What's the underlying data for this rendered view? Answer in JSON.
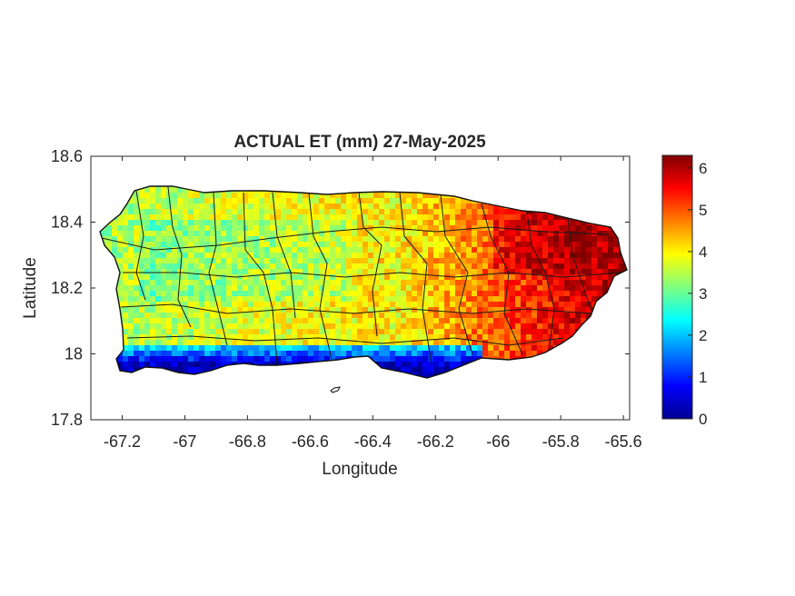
{
  "figure": {
    "title": "ACTUAL ET (mm) 27-May-2025",
    "xlabel": "Longitude",
    "ylabel": "Latitude"
  },
  "chart_data": {
    "type": "heatmap",
    "title": "ACTUAL ET (mm) 27-May-2025",
    "xlabel": "Longitude",
    "ylabel": "Latitude",
    "xlim": [
      -67.3,
      -65.58
    ],
    "ylim": [
      17.8,
      18.6
    ],
    "x_ticks": [
      -67.2,
      -67,
      -66.8,
      -66.6,
      -66.4,
      -66.2,
      -66,
      -65.8,
      -65.6
    ],
    "x_tick_labels": [
      "-67.2",
      "-67",
      "-66.8",
      "-66.6",
      "-66.4",
      "-66.2",
      "-66",
      "-65.8",
      "-65.6"
    ],
    "y_ticks": [
      17.8,
      18,
      18.2,
      18.4,
      18.6
    ],
    "y_tick_labels": [
      "17.8",
      "18",
      "18.2",
      "18.4",
      "18.6"
    ],
    "colorbar": {
      "colormap": "jet",
      "range": [
        0,
        6.3
      ],
      "ticks": [
        0,
        1,
        2,
        3,
        4,
        5,
        6
      ],
      "tick_labels": [
        "0",
        "1",
        "2",
        "3",
        "4",
        "5",
        "6"
      ]
    },
    "grid": false
  }
}
